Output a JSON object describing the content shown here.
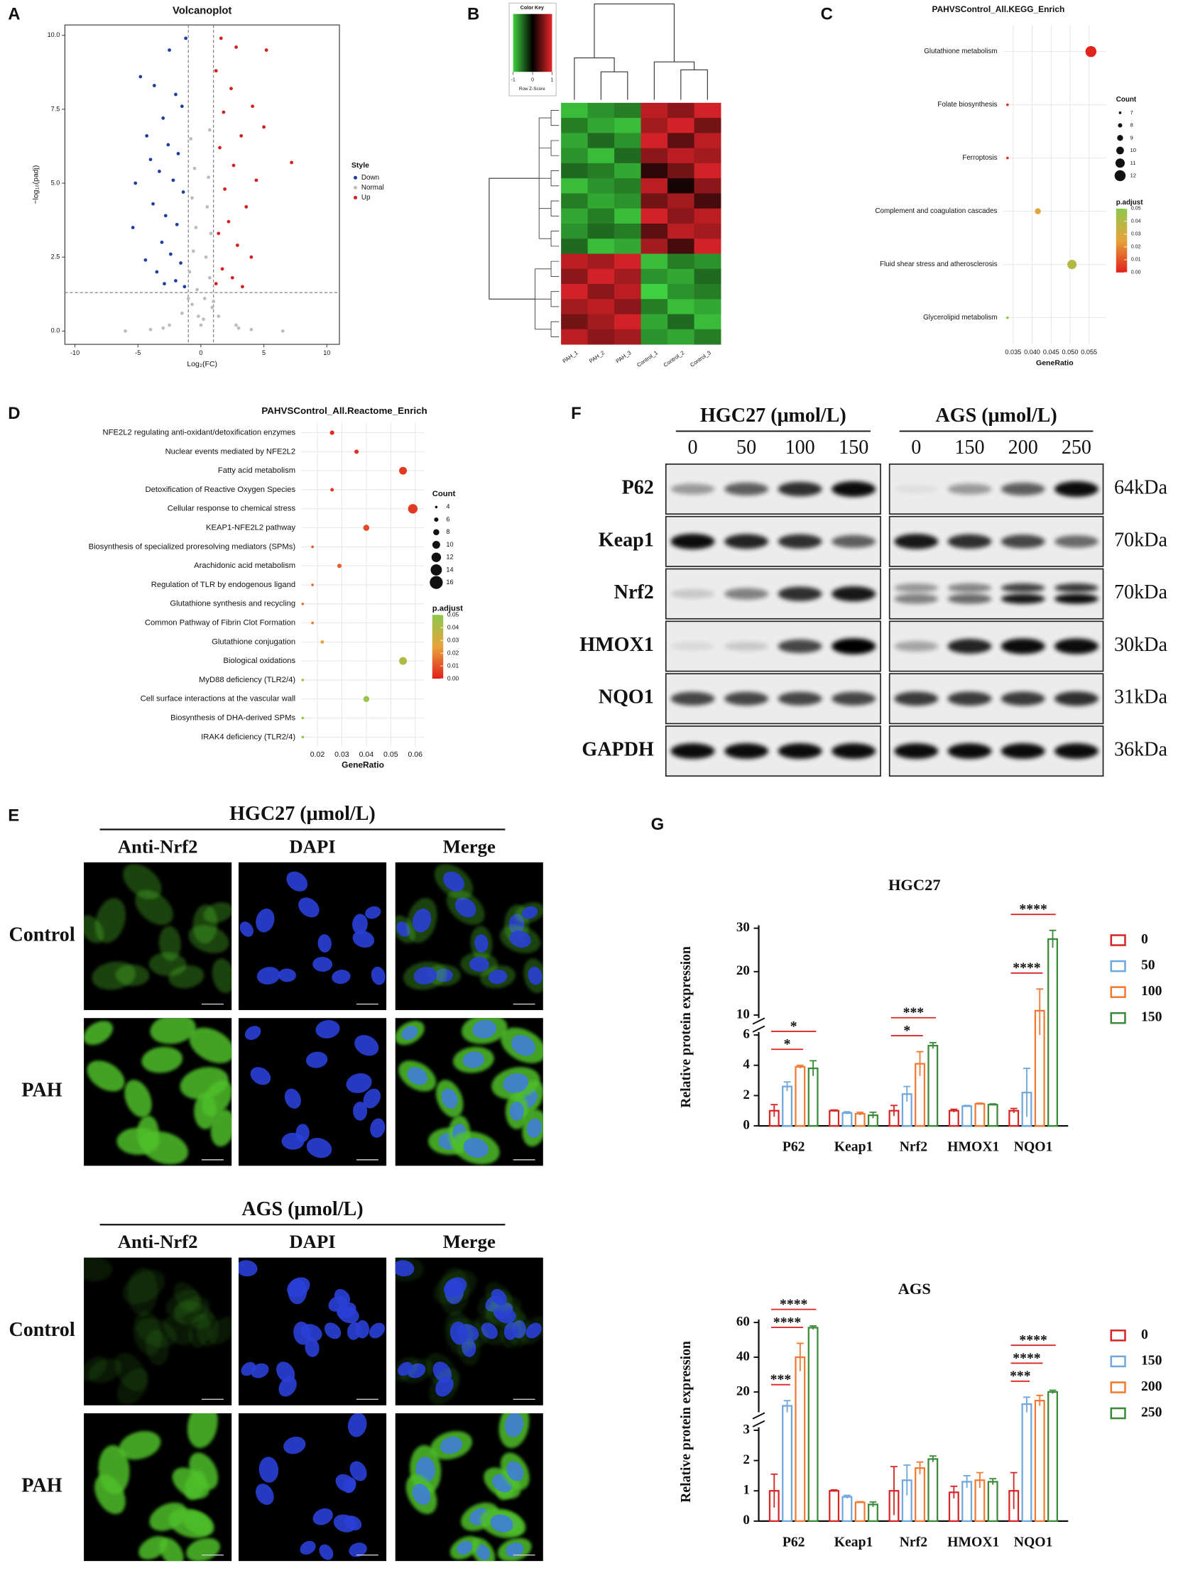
{
  "panel_labels": [
    "A",
    "B",
    "C",
    "D",
    "E",
    "F",
    "G"
  ],
  "chart_data": [
    {
      "type": "scatter",
      "title": "Volcanoplot",
      "xlabel": "Log₂(FC)",
      "ylabel": "−log₁₀(padj)",
      "xlim": [
        -10.8,
        11
      ],
      "ylim": [
        -0.45,
        10.35
      ],
      "xticks": [
        -10,
        -5,
        0,
        5,
        10
      ],
      "yticks": [
        {
          "value": 0,
          "label": "0.0"
        },
        2.5,
        {
          "value": 5,
          "label": "5.0"
        },
        7.5,
        {
          "value": 10,
          "label": "10.0"
        }
      ],
      "vlines": [
        -1,
        1
      ],
      "hline": 1.3,
      "legend_title": "Style",
      "series": [
        {
          "name": "Down",
          "color": "#1f3f9e",
          "x": [
            -1.2,
            -2.5,
            -4.8,
            -3.7,
            -2.0,
            -1.5,
            -3.0,
            -4.3,
            -2.6,
            -1.8,
            -4.0,
            -3.3,
            -5.2,
            -2.2,
            -1.4,
            -3.8,
            -2.8,
            -5.4,
            -1.9,
            -3.1,
            -2.4,
            -1.6,
            -4.4,
            -3.5,
            -2.0,
            -1.3,
            -2.9
          ],
          "y": [
            9.9,
            9.5,
            8.6,
            8.3,
            8.0,
            7.6,
            7.2,
            6.6,
            6.3,
            6.0,
            5.8,
            5.4,
            5.0,
            5.1,
            4.7,
            4.3,
            3.9,
            3.5,
            3.6,
            3.0,
            2.6,
            2.3,
            2.4,
            2.0,
            1.7,
            1.5,
            1.6
          ]
        },
        {
          "name": "Normal",
          "color": "#bdbdbd",
          "x": [
            -0.8,
            0.7,
            -0.5,
            0.6,
            -0.7,
            0.5,
            -0.4,
            0.8,
            -0.6,
            0.4,
            -0.9,
            0.7,
            -0.3,
            0.3,
            -0.7,
            0.9,
            -0.2,
            0.2,
            -1.5,
            1.4,
            -2.5,
            2.8,
            -4,
            4,
            -6,
            6.5,
            -3,
            3,
            0,
            -1,
            1
          ],
          "y": [
            6.5,
            6.8,
            5.5,
            5.2,
            4.5,
            4.2,
            3.5,
            3.3,
            2.7,
            2.5,
            2.0,
            1.8,
            1.4,
            1.1,
            0.9,
            0.8,
            0.5,
            0.4,
            0.6,
            0.5,
            0.2,
            0.2,
            0.05,
            0.05,
            0,
            0,
            0.1,
            0.1,
            0.2,
            1.1,
            1.0
          ]
        },
        {
          "name": "Up",
          "color": "#d21f1f",
          "x": [
            1.6,
            2.8,
            5.2,
            1.2,
            2.4,
            4.1,
            1.8,
            5.0,
            3.2,
            7.2,
            1.5,
            2.6,
            4.4,
            1.9,
            3.6,
            2.2,
            1.4,
            2.9,
            4.0,
            1.7,
            2.5,
            3.3,
            1.2
          ],
          "y": [
            9.9,
            9.6,
            9.5,
            8.8,
            8.2,
            7.6,
            7.4,
            6.9,
            6.6,
            5.7,
            6.2,
            5.6,
            5.1,
            4.8,
            4.2,
            3.7,
            3.3,
            2.9,
            2.5,
            2.1,
            1.8,
            1.5,
            1.6
          ]
        }
      ]
    },
    {
      "type": "heatmap",
      "colorbar_title": "Color Key",
      "colorbar_label": "Row Z-Score",
      "columns": [
        "PAH_1",
        "PAH_2",
        "PAH_3",
        "Control_1",
        "Control_2",
        "Control_3"
      ],
      "zlim": [
        -1,
        1
      ],
      "zticks": [
        -1,
        0,
        1
      ],
      "colorscale": [
        "#3fd13f",
        "#000000",
        "#e8262b"
      ],
      "values": [
        [
          -0.9,
          -0.7,
          -0.6,
          0.8,
          0.6,
          0.9
        ],
        [
          -0.6,
          -0.8,
          -0.9,
          0.7,
          0.9,
          0.5
        ],
        [
          -0.8,
          -0.5,
          -0.7,
          0.9,
          0.4,
          0.8
        ],
        [
          -0.7,
          -0.9,
          -0.5,
          0.6,
          0.8,
          0.7
        ],
        [
          -0.5,
          -0.6,
          -0.8,
          0.2,
          0.5,
          0.9
        ],
        [
          -0.9,
          -0.7,
          -0.6,
          0.8,
          0.1,
          0.6
        ],
        [
          -0.6,
          -0.8,
          -0.7,
          0.5,
          0.7,
          0.3
        ],
        [
          -0.8,
          -0.6,
          -0.9,
          0.9,
          0.6,
          0.8
        ],
        [
          -0.7,
          -0.5,
          -0.6,
          0.4,
          0.8,
          0.7
        ],
        [
          -0.5,
          -0.9,
          -0.8,
          0.7,
          0.3,
          0.9
        ],
        [
          0.8,
          0.7,
          0.9,
          -0.9,
          -0.6,
          -0.7
        ],
        [
          0.6,
          0.9,
          0.7,
          -0.7,
          -0.8,
          -0.5
        ],
        [
          0.9,
          0.6,
          0.8,
          -1.0,
          -0.7,
          -0.6
        ],
        [
          0.7,
          0.8,
          0.6,
          -0.6,
          -0.9,
          -0.8
        ],
        [
          0.5,
          0.7,
          0.9,
          -0.8,
          -0.5,
          -0.9
        ],
        [
          0.8,
          0.6,
          0.7,
          -0.7,
          -0.8,
          -0.6
        ]
      ]
    },
    {
      "type": "dot",
      "title": "PAHVSControl_All.KEGG_Enrich",
      "xlabel": "GeneRatio",
      "categories": [
        "Glutathione metabolism",
        "Folate biosynthesis",
        "Ferroptosis",
        "Complement and coagulation cascades",
        "Fluid shear stress and atherosclerosis",
        "Glycerolipid metabolism"
      ],
      "values": [
        0.0555,
        0.0335,
        0.0335,
        0.0415,
        0.0505,
        0.0335
      ],
      "count": [
        12,
        7,
        7,
        9,
        11,
        7
      ],
      "p_adjust": [
        0.001,
        0.003,
        0.004,
        0.028,
        0.04,
        0.05
      ],
      "xlim": [
        0.0324,
        0.0595
      ],
      "xticks": [
        0.035,
        {
          "value": 0.04,
          "label": "0.040"
        },
        0.045,
        {
          "value": 0.05,
          "label": "0.050"
        },
        0.055
      ],
      "size_title": "Count",
      "size_ticks": [
        7,
        8,
        9,
        10,
        11,
        12
      ],
      "color_title": "p.adjust",
      "clim": [
        0,
        0.05
      ],
      "colorscale": [
        "#e0201c",
        "#e8a33a",
        "#8cc84b"
      ],
      "color_ticks": [
        {
          "value": 0,
          "label": "0.00"
        },
        0.01,
        0.02,
        0.03,
        0.04,
        0.05
      ]
    },
    {
      "type": "dot",
      "title": "PAHVSControl_All.Reactome_Enrich",
      "xlabel": "GeneRatio",
      "categories": [
        "NFE2L2 regulating anti-oxidant/detoxification enzymes",
        "Nuclear events mediated by NFE2L2",
        "Fatty acid metabolism",
        "Detoxification of Reactive Oxygen Species",
        "Cellular response to chemical stress",
        "KEAP1-NFE2L2 pathway",
        "Biosynthesis of specialized proresolving mediators (SPMs)",
        "Arachidonic acid metabolism",
        "Regulation of TLR by endogenous ligand",
        "Glutathione synthesis and recycling",
        "Common Pathway of Fibrin Clot Formation",
        "Glutathione conjugation",
        "Biological oxidations",
        "MyD88 deficiency (TLR2/4)",
        "Cell surface interactions at the vascular wall",
        "Biosynthesis of DHA-derived SPMs",
        "IRAK4 deficiency (TLR2/4)"
      ],
      "values": [
        0.026,
        0.036,
        0.055,
        0.026,
        0.059,
        0.04,
        0.018,
        0.029,
        0.018,
        0.014,
        0.018,
        0.022,
        0.055,
        0.014,
        0.04,
        0.014,
        0.014
      ],
      "count": [
        6,
        6,
        10,
        5,
        12,
        8,
        4,
        6,
        4,
        4,
        4,
        5,
        10,
        4,
        8,
        4,
        4
      ],
      "p_adjust": [
        0.002,
        0.003,
        0.005,
        0.004,
        0.005,
        0.008,
        0.01,
        0.012,
        0.014,
        0.015,
        0.017,
        0.025,
        0.04,
        0.045,
        0.047,
        0.048,
        0.05
      ],
      "xlim": [
        0.0135,
        0.0637
      ],
      "xticks": [
        0.02,
        0.03,
        0.04,
        0.05,
        0.06
      ],
      "size_title": "Count",
      "size_ticks": [
        4,
        6,
        8,
        10,
        12,
        14,
        16
      ],
      "color_title": "p.adjust",
      "clim": [
        0,
        0.05
      ],
      "colorscale": [
        "#e0201c",
        "#e8a33a",
        "#8cc84b"
      ],
      "color_ticks": [
        {
          "value": 0,
          "label": "0.00"
        },
        0.01,
        0.02,
        0.03,
        0.04,
        0.05
      ]
    },
    {
      "type": "bar",
      "title": "HGC27",
      "ylabel": "Relative protein expression",
      "categories": [
        "P62",
        "Keap1",
        "Nrf2",
        "HMOX1",
        "NQO1"
      ],
      "y_segments": [
        {
          "ylim": [
            0,
            6
          ],
          "yticks": [
            0,
            2,
            4,
            6
          ]
        },
        {
          "ylim": [
            10,
            30
          ],
          "yticks": [
            10,
            20,
            30
          ]
        }
      ],
      "series": [
        {
          "name": "0",
          "color": "#d62728",
          "values": [
            1.0,
            1.0,
            1.0,
            1.0,
            1.0
          ],
          "errors": [
            0.4,
            0.05,
            0.35,
            0.1,
            0.15
          ]
        },
        {
          "name": "50",
          "color": "#6fa8dc",
          "values": [
            2.6,
            0.85,
            2.1,
            1.3,
            2.2
          ],
          "errors": [
            0.3,
            0.08,
            0.5,
            0.05,
            1.6
          ]
        },
        {
          "name": "100",
          "color": "#f07a32",
          "values": [
            3.9,
            0.8,
            4.1,
            1.45,
            11
          ],
          "errors": [
            0.1,
            0.1,
            0.8,
            0.05,
            5
          ]
        },
        {
          "name": "150",
          "color": "#3a8a3a",
          "values": [
            3.8,
            0.7,
            5.3,
            1.4,
            27.5
          ],
          "errors": [
            0.5,
            0.2,
            0.2,
            0.05,
            2
          ]
        }
      ],
      "annotations": [
        {
          "text": "*",
          "category": "P62",
          "from": "0",
          "to": "100"
        },
        {
          "text": "*",
          "category": "P62",
          "from": "0",
          "to": "150"
        },
        {
          "text": "*",
          "category": "Nrf2",
          "from": "0",
          "to": "100"
        },
        {
          "text": "***",
          "category": "Nrf2",
          "from": "0",
          "to": "150"
        },
        {
          "text": "****",
          "category": "NQO1",
          "from": "0",
          "to": "100"
        },
        {
          "text": "****",
          "category": "NQO1",
          "from": "0",
          "to": "150"
        }
      ]
    },
    {
      "type": "bar",
      "title": "AGS",
      "ylabel": "Relative protein expression",
      "categories": [
        "P62",
        "Keap1",
        "Nrf2",
        "HMOX1",
        "NQO1"
      ],
      "y_segments": [
        {
          "ylim": [
            0,
            3
          ],
          "yticks": [
            0,
            1,
            2,
            3
          ]
        },
        {
          "ylim": [
            10,
            60
          ],
          "yticks": [
            20,
            40,
            60
          ]
        }
      ],
      "series": [
        {
          "name": "0",
          "color": "#d62728",
          "values": [
            1.0,
            1.0,
            1.0,
            0.95,
            1.0
          ],
          "errors": [
            0.55,
            0.03,
            0.8,
            0.2,
            0.6
          ]
        },
        {
          "name": "150",
          "color": "#6fa8dc",
          "values": [
            12,
            0.8,
            1.35,
            1.3,
            13
          ],
          "errors": [
            3,
            0.05,
            0.5,
            0.2,
            4
          ]
        },
        {
          "name": "200",
          "color": "#f07a32",
          "values": [
            40,
            0.62,
            1.75,
            1.35,
            15
          ],
          "errors": [
            8,
            0.02,
            0.2,
            0.25,
            3
          ]
        },
        {
          "name": "250",
          "color": "#3a8a3a",
          "values": [
            57,
            0.55,
            2.05,
            1.3,
            20
          ],
          "errors": [
            1,
            0.08,
            0.1,
            0.1,
            1
          ]
        }
      ],
      "annotations": [
        {
          "text": "***",
          "category": "P62",
          "from": "0",
          "to": "150"
        },
        {
          "text": "****",
          "category": "P62",
          "from": "0",
          "to": "200"
        },
        {
          "text": "****",
          "category": "P62",
          "from": "0",
          "to": "250"
        },
        {
          "text": "***",
          "category": "NQO1",
          "from": "0",
          "to": "150"
        },
        {
          "text": "****",
          "category": "NQO1",
          "from": "0",
          "to": "200"
        },
        {
          "text": "****",
          "category": "NQO1",
          "from": "0",
          "to": "250"
        }
      ]
    }
  ],
  "western_blot": {
    "groups": [
      {
        "title": "HGC27 (μmol/L)",
        "lanes": [
          "0",
          "50",
          "100",
          "150"
        ]
      },
      {
        "title": "AGS (μmol/L)",
        "lanes": [
          "0",
          "150",
          "200",
          "250"
        ]
      }
    ],
    "proteins": [
      {
        "name": "P62",
        "size": "64kDa"
      },
      {
        "name": "Keap1",
        "size": "70kDa"
      },
      {
        "name": "Nrf2",
        "size": "70kDa"
      },
      {
        "name": "HMOX1",
        "size": "30kDa"
      },
      {
        "name": "NQO1",
        "size": "31kDa"
      },
      {
        "name": "GAPDH",
        "size": "36kDa"
      }
    ]
  },
  "immunofluorescence": {
    "sections": [
      {
        "title": "HGC27 (μmol/L)",
        "columns": [
          "Anti-Nrf2",
          "DAPI",
          "Merge"
        ],
        "rows": [
          "Control",
          "PAH"
        ]
      },
      {
        "title": "AGS (μmol/L)",
        "columns": [
          "Anti-Nrf2",
          "DAPI",
          "Merge"
        ],
        "rows": [
          "Control",
          "PAH"
        ]
      }
    ]
  }
}
